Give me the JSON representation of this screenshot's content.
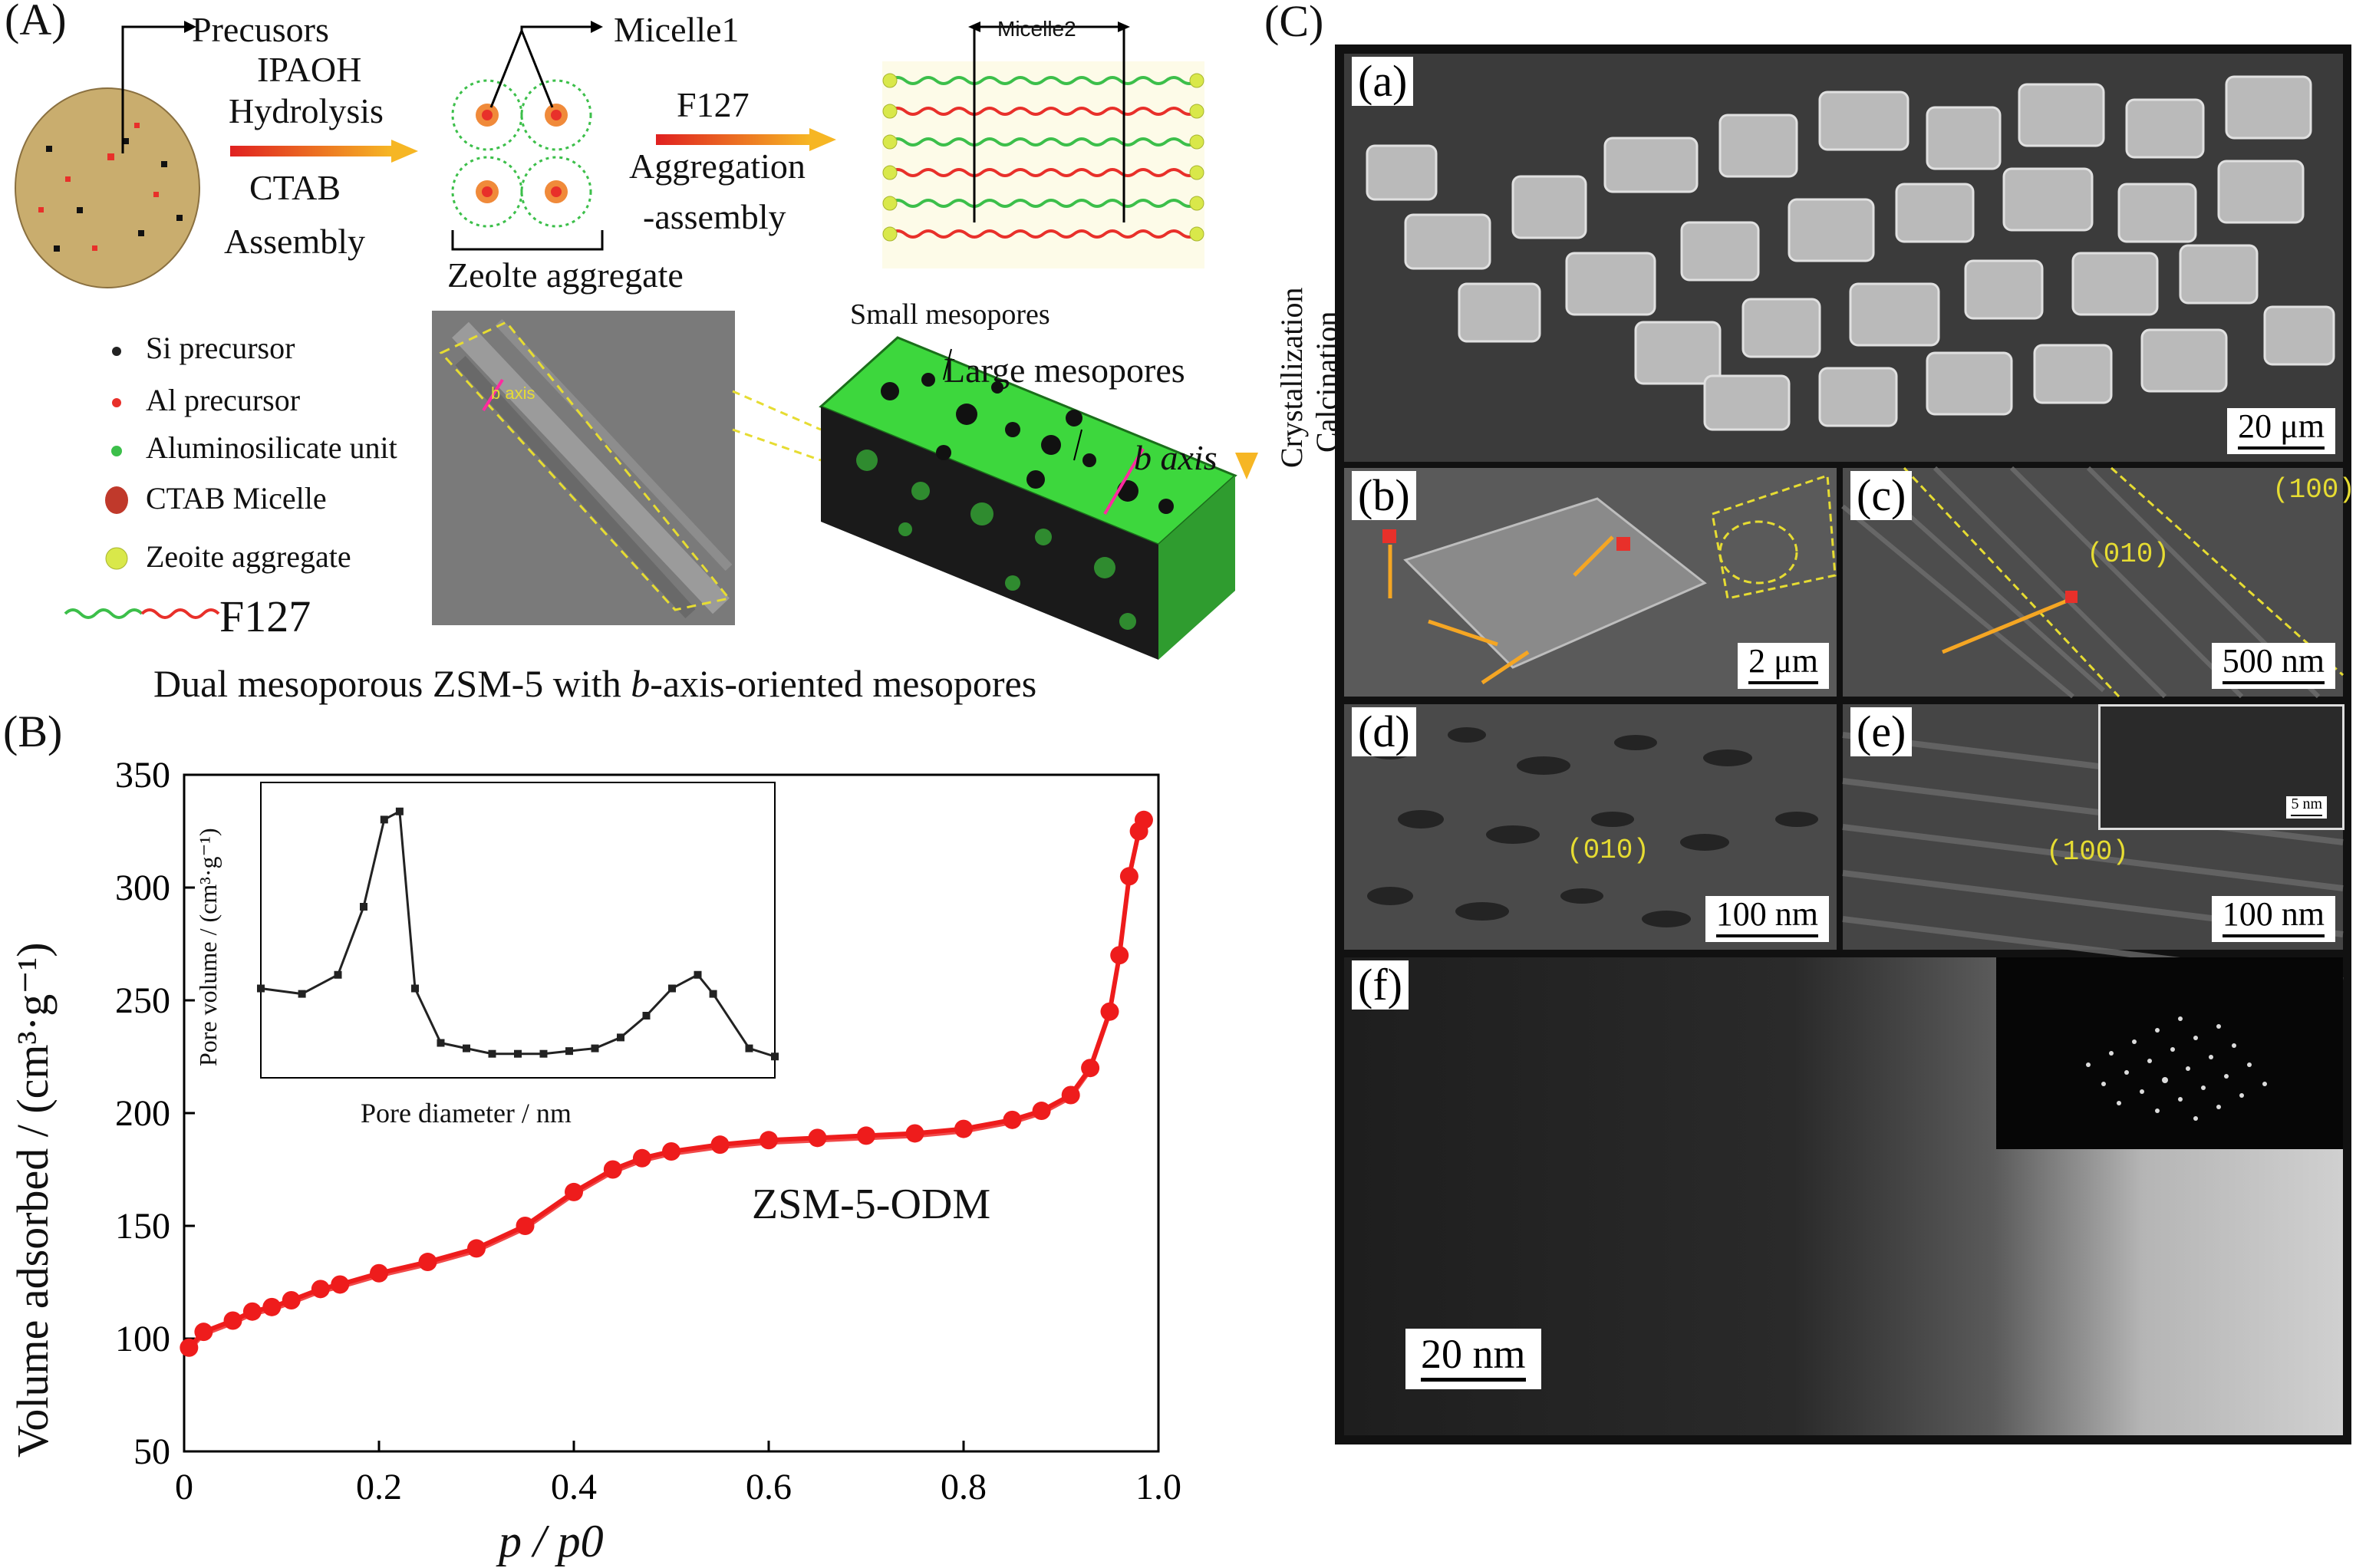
{
  "panel_a": {
    "letter": "(A)",
    "precursors": "Precusors",
    "step1_top": "IPAOH",
    "step1_top2": "Hydrolysis",
    "step1_bottom": "CTAB",
    "step1_bottom2": "Assembly",
    "micelle1": "Micelle1",
    "zeolite_aggregate": "Zeolte aggregate",
    "step2_top": "F127",
    "step2_bottom": "Aggregation",
    "step2_bottom2": "-assembly",
    "micelle2": "Micelle2",
    "small_mesopores": "Small mesopores",
    "large_mesopores": "Large mesopores",
    "b_axis_model": "b axis",
    "b_axis_sem": "b axis",
    "crystallization": "Crystallization",
    "calcination": "Calcination",
    "legend": [
      {
        "label": "Si precursor",
        "color": "#222222"
      },
      {
        "label": "Al precursor",
        "color": "#e8302a"
      },
      {
        "label": "Aluminosilicate unit",
        "color": "#3cbf4a"
      },
      {
        "label": "CTAB Micelle",
        "color": "#c0392b"
      },
      {
        "label": "Zeoite aggregate",
        "color": "#d9e84a"
      }
    ],
    "f127_label": "F127",
    "caption_pre": "Dual mesoporous ZSM-5 with ",
    "caption_italic": "b",
    "caption_post": "-axis-oriented mesopores"
  },
  "panel_b": {
    "letter": "(B)",
    "sample_label": "ZSM-5-ODM",
    "inset_xlabel": "Pore diameter / nm",
    "inset_ylabel": "Pore volume / (cm³·g⁻¹)"
  },
  "panel_c": {
    "letter": "(C)",
    "subpanels": [
      {
        "label": "(a)",
        "scale": "20 μm"
      },
      {
        "label": "(b)",
        "scale": "2 μm"
      },
      {
        "label": "(c)",
        "scale": "500 nm",
        "facets": [
          "(100)",
          "(010)"
        ]
      },
      {
        "label": "(d)",
        "scale": "100 nm",
        "facets": [
          "(010)"
        ]
      },
      {
        "label": "(e)",
        "scale": "100 nm",
        "facets": [
          "(100)"
        ],
        "inset_scale": "5 nm"
      },
      {
        "label": "(f)",
        "scale": "20 nm"
      }
    ]
  },
  "chart_data": {
    "type": "line",
    "title": "",
    "xlabel": "p / p0",
    "ylabel": "Volume adsorbed / (cm³·g⁻¹)",
    "xlim": [
      0,
      1.0
    ],
    "ylim": [
      50,
      350
    ],
    "xticks": [
      "0",
      "0.2",
      "0.4",
      "0.6",
      "0.8",
      "1.0"
    ],
    "yticks": [
      "50",
      "100",
      "150",
      "200",
      "250",
      "300",
      "350"
    ],
    "series_color": "#ee1c1c",
    "series": [
      {
        "name": "ZSM-5-ODM",
        "x": [
          0.005,
          0.02,
          0.05,
          0.07,
          0.09,
          0.11,
          0.14,
          0.16,
          0.2,
          0.25,
          0.3,
          0.35,
          0.4,
          0.44,
          0.47,
          0.5,
          0.55,
          0.6,
          0.65,
          0.7,
          0.75,
          0.8,
          0.85,
          0.88,
          0.91,
          0.93,
          0.95,
          0.96,
          0.97,
          0.98,
          0.985
        ],
        "y": [
          96,
          103,
          108,
          112,
          114,
          117,
          122,
          124,
          129,
          134,
          140,
          150,
          165,
          175,
          180,
          183,
          186,
          188,
          189,
          190,
          191,
          193,
          197,
          201,
          208,
          220,
          245,
          270,
          305,
          325,
          330
        ]
      }
    ],
    "inset": {
      "type": "line",
      "x": [
        0.0,
        0.08,
        0.15,
        0.2,
        0.24,
        0.27,
        0.3,
        0.35,
        0.4,
        0.45,
        0.5,
        0.55,
        0.6,
        0.65,
        0.7,
        0.75,
        0.8,
        0.85,
        0.88,
        0.95,
        1.0
      ],
      "y": [
        0.3,
        0.28,
        0.35,
        0.6,
        0.92,
        0.95,
        0.3,
        0.1,
        0.08,
        0.06,
        0.06,
        0.06,
        0.07,
        0.08,
        0.12,
        0.2,
        0.3,
        0.35,
        0.28,
        0.08,
        0.05
      ]
    }
  }
}
